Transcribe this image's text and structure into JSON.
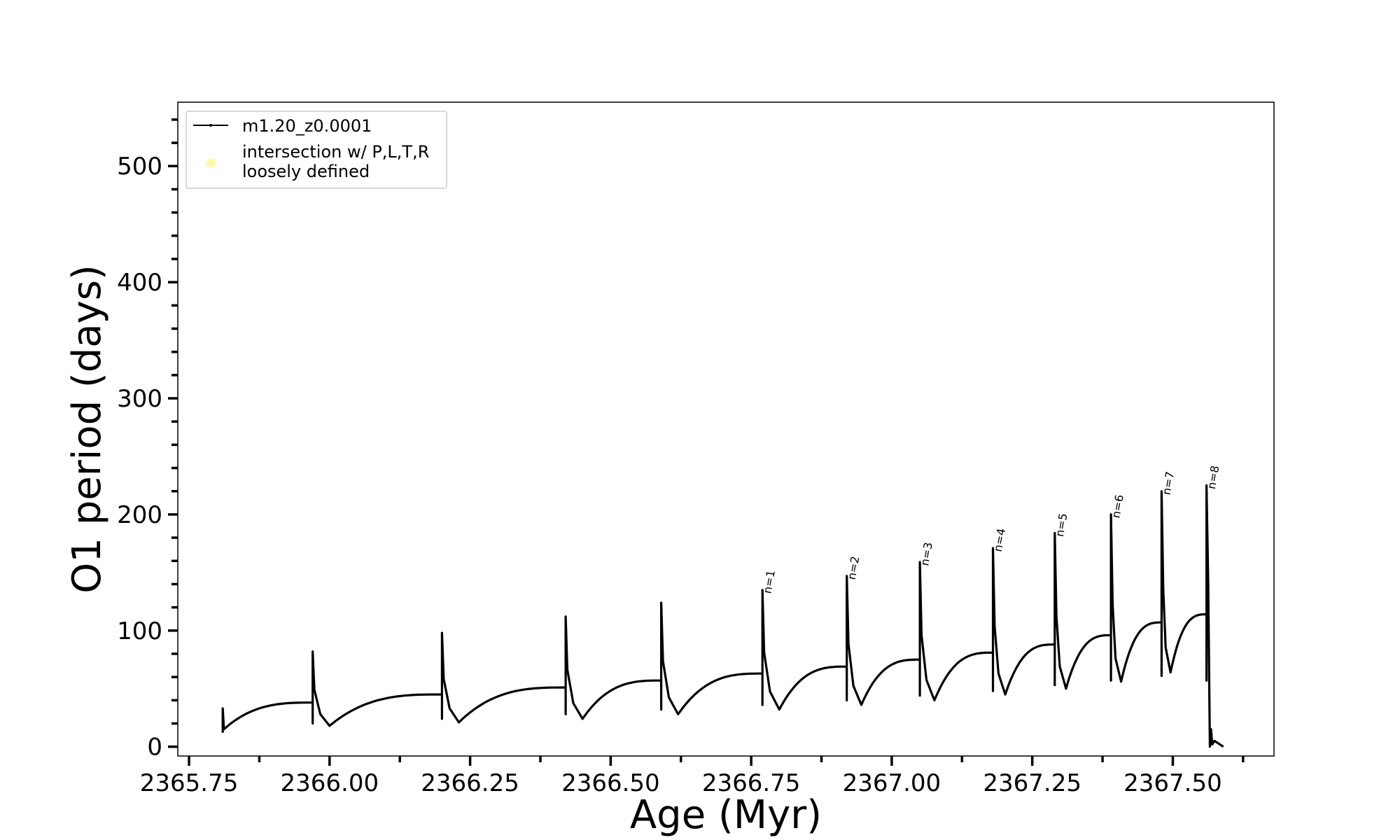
{
  "chart_data": {
    "type": "line",
    "title": "",
    "xlabel": "Age (Myr)",
    "ylabel": "O1 period (days)",
    "xlim": [
      2365.73,
      2367.68
    ],
    "ylim": [
      -8,
      555
    ],
    "xticks": [
      2365.75,
      2366.0,
      2366.25,
      2366.5,
      2366.75,
      2367.0,
      2367.25,
      2367.5
    ],
    "xtick_labels": [
      "2365.75",
      "2366.00",
      "2366.25",
      "2366.50",
      "2366.75",
      "2367.00",
      "2367.25",
      "2367.50"
    ],
    "yticks": [
      0,
      100,
      200,
      300,
      400,
      500
    ],
    "ytick_labels": [
      "0",
      "100",
      "200",
      "300",
      "400",
      "500"
    ],
    "grid": false,
    "legend_position": "top-left",
    "legend": [
      {
        "label": "m1.20_z0.0001",
        "marker": "line",
        "color": "#000000"
      },
      {
        "label_lines": [
          "intersection w/ P,L,T,R",
          "loosely defined"
        ],
        "marker": "circle",
        "color": "#fff9b0"
      }
    ],
    "series": [
      {
        "name": "m1.20_z0.0001",
        "color": "#000000",
        "start": {
          "x": 2365.81,
          "y": 15
        },
        "pulses": [
          {
            "x": 2365.97,
            "pre": 38,
            "peak": 82,
            "low": 20,
            "dip": 18,
            "label": ""
          },
          {
            "x": 2366.2,
            "pre": 45,
            "peak": 98,
            "low": 24,
            "dip": 21,
            "label": ""
          },
          {
            "x": 2366.42,
            "pre": 51,
            "peak": 112,
            "low": 28,
            "dip": 24,
            "label": ""
          },
          {
            "x": 2366.59,
            "pre": 57,
            "peak": 124,
            "low": 32,
            "dip": 28,
            "label": ""
          },
          {
            "x": 2366.77,
            "pre": 63,
            "peak": 135,
            "low": 36,
            "dip": 32,
            "label": "n=1"
          },
          {
            "x": 2366.92,
            "pre": 69,
            "peak": 147,
            "low": 40,
            "dip": 36,
            "label": "n=2"
          },
          {
            "x": 2367.05,
            "pre": 75,
            "peak": 159,
            "low": 44,
            "dip": 40,
            "label": "n=3"
          },
          {
            "x": 2367.18,
            "pre": 81,
            "peak": 171,
            "low": 48,
            "dip": 45,
            "label": "n=4"
          },
          {
            "x": 2367.29,
            "pre": 88,
            "peak": 184,
            "low": 53,
            "dip": 50,
            "label": "n=5"
          },
          {
            "x": 2367.39,
            "pre": 96,
            "peak": 200,
            "low": 57,
            "dip": 56,
            "label": "n=6"
          },
          {
            "x": 2367.48,
            "pre": 107,
            "peak": 220,
            "low": 61,
            "dip": 64,
            "label": "n=7"
          },
          {
            "x": 2367.56,
            "pre": 114,
            "peak": 225,
            "low": 57,
            "dip": 0,
            "label": "n=8"
          }
        ],
        "end": {
          "x": 2367.59,
          "y": 0
        }
      }
    ]
  }
}
